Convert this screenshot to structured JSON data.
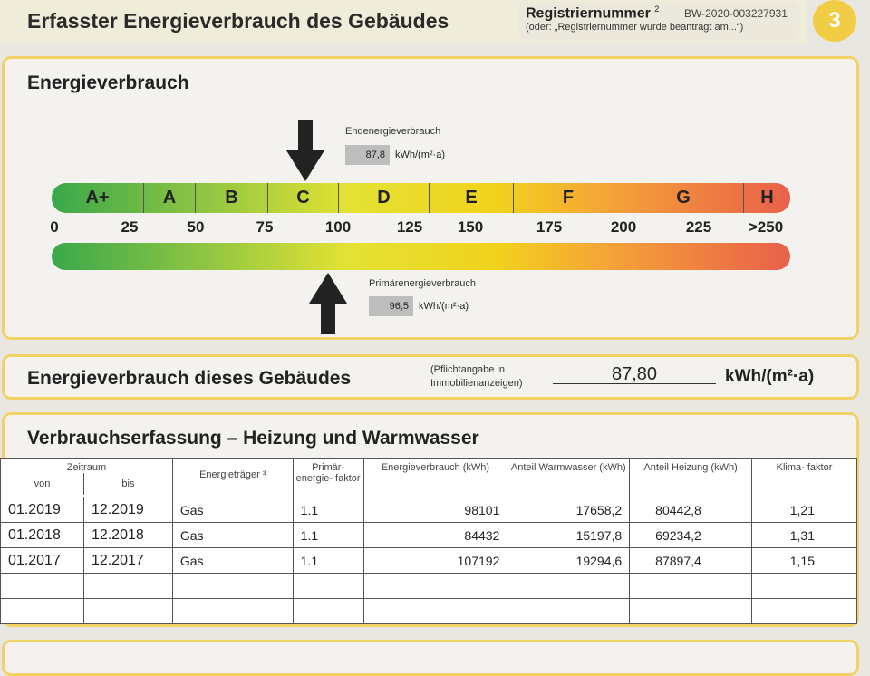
{
  "header": {
    "title": "Erfasster Energieverbrauch des Gebäudes",
    "reg_label": "Registriernummer",
    "reg_sup": "2",
    "reg_number": "BW-2020-003227931",
    "reg_note": "(oder: „Registriernummer wurde beantragt am...“)",
    "page_number": "3"
  },
  "energy": {
    "title": "Energieverbrauch",
    "classes": [
      "A+",
      "A",
      "B",
      "C",
      "D",
      "E",
      "F",
      "G",
      "H"
    ],
    "ticks": [
      "0",
      "25",
      "50",
      "75",
      "100",
      "125",
      "150",
      "175",
      "200",
      "225",
      ">250"
    ],
    "end_label": "Endenergieverbrauch",
    "end_value": "87,8",
    "end_unit": "kWh/(m²·a)",
    "primary_label": "Primärenergieverbrauch",
    "primary_value": "96,5",
    "primary_unit": "kWh/(m²·a)"
  },
  "building": {
    "title": "Energieverbrauch dieses Gebäudes",
    "note_line1": "(Pflichtangabe in",
    "note_line2": "Immobilienanzeigen)",
    "value": "87,80",
    "unit": "kWh/(m²·a)"
  },
  "consumption": {
    "title": "Verbrauchserfassung – Heizung und Warmwasser",
    "headers": {
      "period": "Zeitraum",
      "from": "von",
      "to": "bis",
      "carrier": "Energieträger ³",
      "pef": "Primär- energie- faktor",
      "consumption": "Energieverbrauch (kWh)",
      "hot_water": "Anteil Warmwasser (kWh)",
      "heating": "Anteil Heizung (kWh)",
      "climate": "Klima- faktor"
    },
    "rows": [
      {
        "from": "01.2019",
        "to": "12.2019",
        "carrier": "Gas",
        "pef": "1.1",
        "consumption": "98101",
        "hot_water": "17658,2",
        "heating": "80442,8",
        "climate": "1,21"
      },
      {
        "from": "01.2018",
        "to": "12.2018",
        "carrier": "Gas",
        "pef": "1.1",
        "consumption": "84432",
        "hot_water": "15197,8",
        "heating": "69234,2",
        "climate": "1,31"
      },
      {
        "from": "01.2017",
        "to": "12.2017",
        "carrier": "Gas",
        "pef": "1.1",
        "consumption": "107192",
        "hot_water": "19294,6",
        "heating": "87897,4",
        "climate": "1,15"
      }
    ]
  },
  "colors": {
    "accent_yellow": "#f1cd45",
    "border_yellow": "#f1d267"
  }
}
